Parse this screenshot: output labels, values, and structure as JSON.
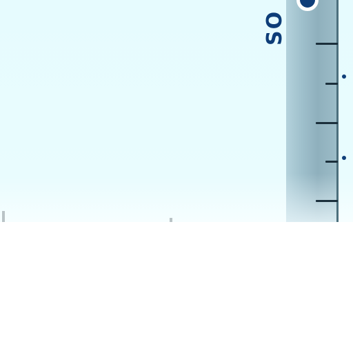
{
  "tube_label": "SO",
  "icons": {
    "ring": "ring-icon",
    "dash": "dash-icon"
  },
  "colors": {
    "label": "#0d3d78",
    "tube": "#9fc0cc",
    "sky": "#e6fbfe"
  }
}
